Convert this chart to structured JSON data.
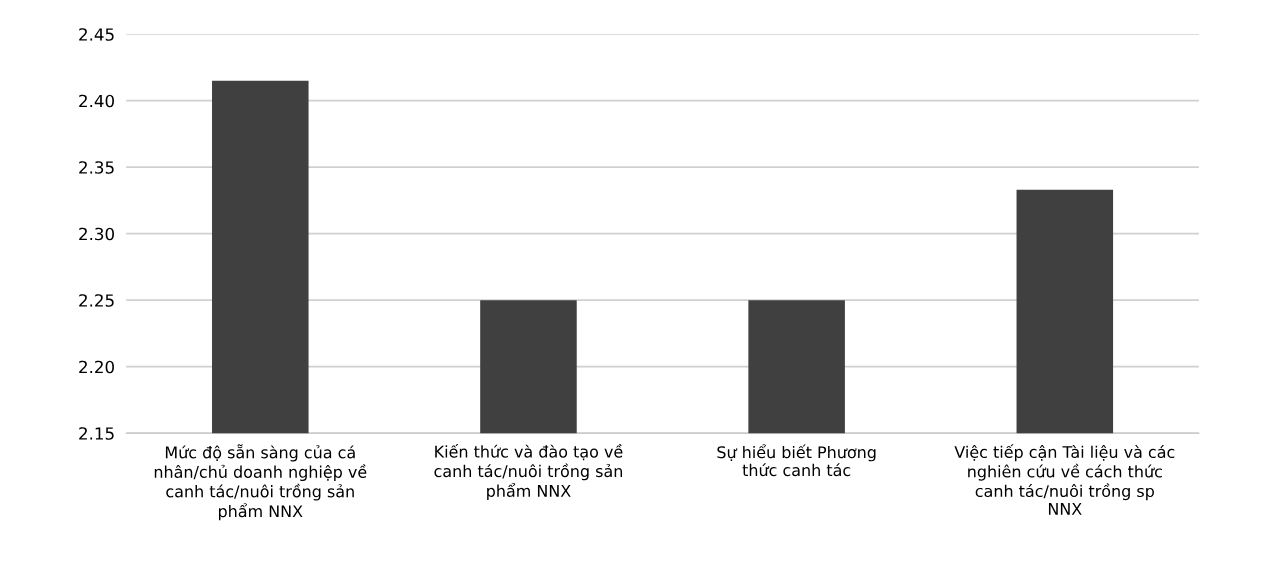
{
  "chart_data": {
    "type": "bar",
    "categories": [
      "Mức độ sẵn sàng của cá\nnhân/chủ doanh nghiệp về\ncanh tác/nuôi trồng sản\nphẩm NNX",
      "Kiến thức và đào tạo về\ncanh tác/nuôi trồng sản\nphẩm NNX",
      "Sự hiểu biết Phương\nthức canh tác",
      "Việc tiếp cận Tài liệu và các\nnghiên cứu về cách thức\ncanh tác/nuôi trồng sp\nNNX"
    ],
    "values": [
      2.415,
      2.25,
      2.25,
      2.333
    ],
    "color": "#404040",
    "ylim": [
      2.15,
      2.45
    ],
    "yticks": [
      {
        "value": 2.15,
        "label": "2.15"
      },
      {
        "value": 2.2,
        "label": "2.20"
      },
      {
        "value": 2.25,
        "label": "2.25"
      },
      {
        "value": 2.3,
        "label": "2.30"
      },
      {
        "value": 2.35,
        "label": "2.35"
      },
      {
        "value": 2.4,
        "label": "2.40"
      },
      {
        "value": 2.45,
        "label": "2.45"
      }
    ],
    "grid": "y"
  }
}
